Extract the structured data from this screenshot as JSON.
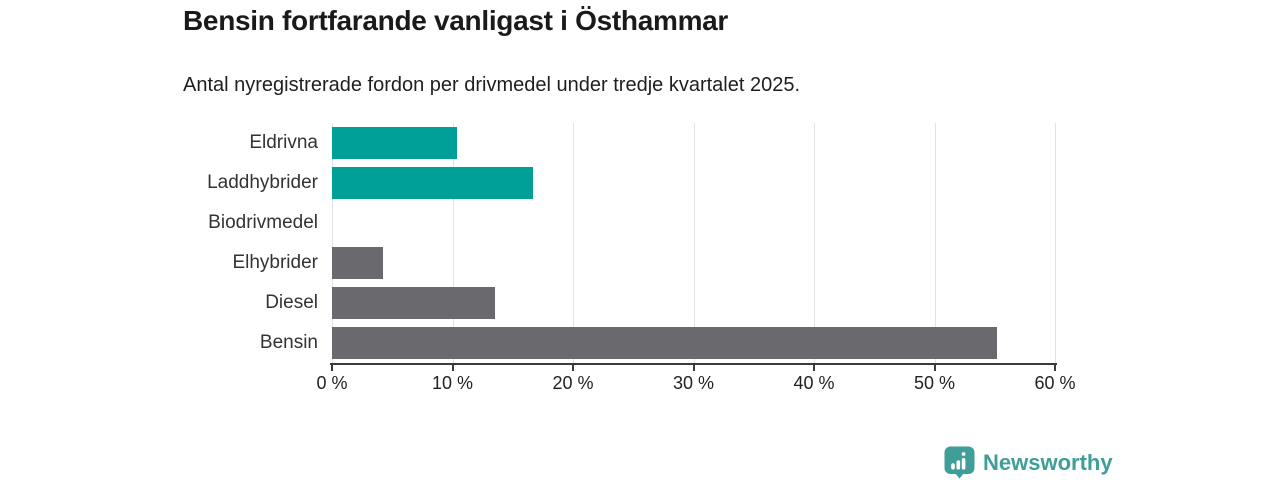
{
  "header": {
    "title": "Bensin fortfarande vanligast i Östhammar",
    "subtitle": "Antal nyregistrerade fordon per drivmedel under tredje kvartalet 2025."
  },
  "chart_data": {
    "type": "bar",
    "orientation": "horizontal",
    "title": "Bensin fortfarande vanligast i Östhammar",
    "subtitle": "Antal nyregistrerade fordon per drivmedel under tredje kvartalet 2025.",
    "categories": [
      "Eldrivna",
      "Laddhybrider",
      "Biodrivmedel",
      "Elhybrider",
      "Diesel",
      "Bensin"
    ],
    "values": [
      10.4,
      16.7,
      0,
      4.2,
      13.5,
      55.2
    ],
    "unit": "%",
    "xlim": [
      0,
      60
    ],
    "x_ticks": [
      "0 %",
      "10 %",
      "20 %",
      "30 %",
      "40 %",
      "50 %",
      "60 %"
    ],
    "x_tick_values": [
      0,
      10,
      20,
      30,
      40,
      50,
      60
    ],
    "grid": true,
    "legend": false,
    "bar_colors": [
      "#00a099",
      "#00a099",
      "#6a6a6e",
      "#6a6a6e",
      "#6a6a6e",
      "#6a6a6e"
    ],
    "accent_color": "#00a099",
    "neutral_color": "#6a6a6e"
  },
  "branding": {
    "logo_text": "Newsworthy",
    "logo_icon": "newsworthy-barchart-pin-icon",
    "logo_color": "#3f9e98"
  }
}
